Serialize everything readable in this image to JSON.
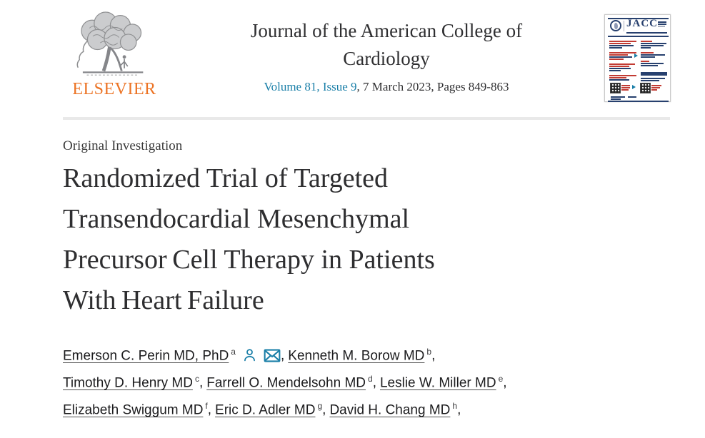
{
  "header": {
    "elsevier_wordmark": "ELSEVIER",
    "journal_title_line1": "Journal of the American College of",
    "journal_title_line2": "Cardiology",
    "volume_link": "Volume 81, Issue 9",
    "volume_rest": ", 7 March 2023, Pages 849-863",
    "cover": {
      "title": "JACC"
    }
  },
  "article": {
    "type_label": "Original Investigation",
    "title_lines": [
      "Randomized Trial of Targeted",
      "Transendocardial Mesenchymal",
      "Precursor Cell Therapy in Patients",
      "With Heart Failure"
    ]
  },
  "authors": {
    "lines": [
      [
        {
          "name": "Emerson C. Perin MD, PhD",
          "sup": "a",
          "profile_icon": true,
          "email_icon": true
        },
        {
          "name": "Kenneth M. Borow MD",
          "sup": "b"
        }
      ],
      [
        {
          "name": "Timothy D. Henry MD",
          "sup": "c"
        },
        {
          "name": "Farrell O. Mendelsohn MD",
          "sup": "d"
        },
        {
          "name": "Leslie W. Miller MD",
          "sup": "e"
        }
      ],
      [
        {
          "name": "Elizabeth Swiggum MD",
          "sup": "f"
        },
        {
          "name": "Eric D. Adler MD",
          "sup": "g"
        },
        {
          "name": "David H. Chang MD",
          "sup": "h"
        }
      ]
    ]
  },
  "colors": {
    "link_teal": "#1a7fa8",
    "elsevier_orange": "#ec7324",
    "cover_navy": "#27406e",
    "cover_red": "#c23b33",
    "divider_gray": "#e9e9e9",
    "title_ink": "#2e2e30"
  }
}
